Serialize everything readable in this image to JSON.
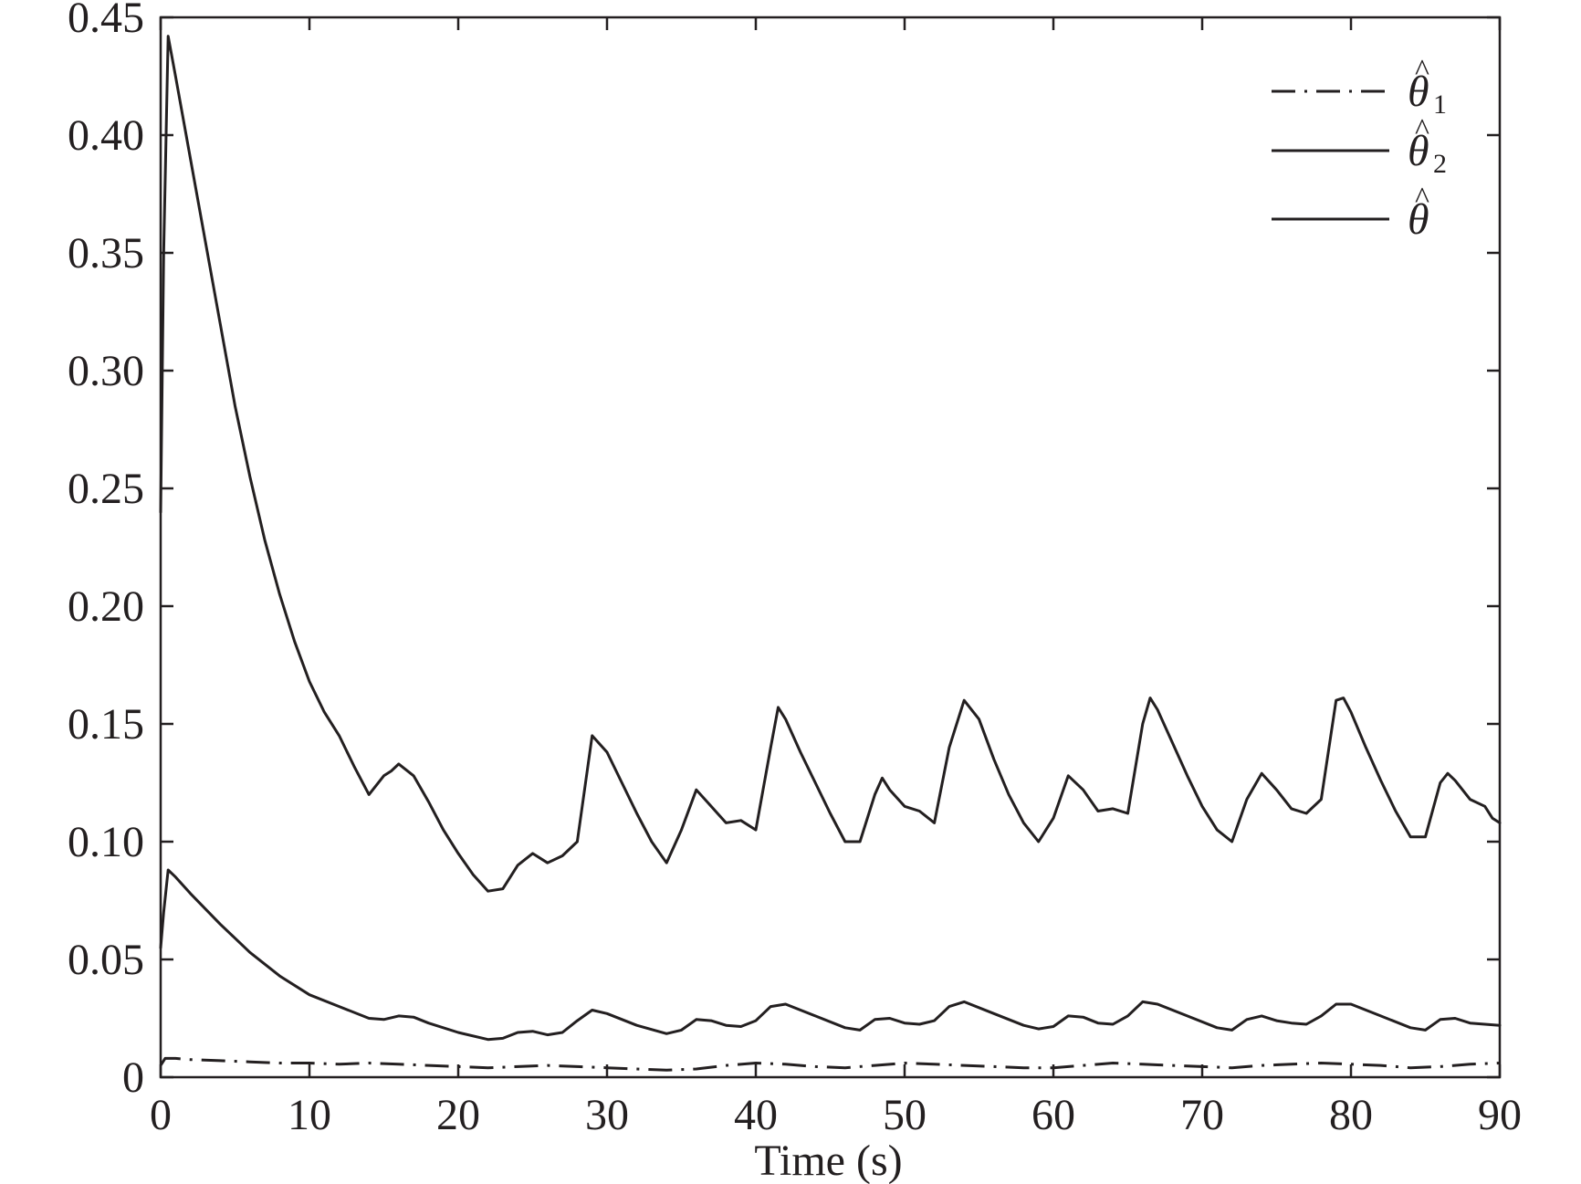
{
  "chart_data": {
    "type": "line",
    "title": "",
    "xlabel": "Time (s)",
    "ylabel": "",
    "xlim": [
      0,
      90
    ],
    "ylim": [
      0,
      0.45
    ],
    "grid": false,
    "legend_position": "top-right",
    "x_ticks": [
      0,
      10,
      20,
      30,
      40,
      50,
      60,
      70,
      80,
      90
    ],
    "x_tick_labels": [
      "0",
      "10",
      "20",
      "30",
      "40",
      "50",
      "60",
      "70",
      "80",
      "90"
    ],
    "y_ticks": [
      0,
      0.05,
      0.1,
      0.15,
      0.2,
      0.25,
      0.3,
      0.35,
      0.4,
      0.45
    ],
    "y_tick_labels": [
      "0",
      "0.05",
      "0.10",
      "0.15",
      "0.20",
      "0.25",
      "0.30",
      "0.35",
      "0.40",
      "0.45"
    ],
    "series": [
      {
        "name": "θ̂1",
        "legend_symbol": "θ",
        "legend_subscript": "1",
        "line_style": "dashdot",
        "color": "#231f20",
        "points": [
          [
            0,
            0.005
          ],
          [
            0.3,
            0.008
          ],
          [
            1,
            0.008
          ],
          [
            2,
            0.0075
          ],
          [
            4,
            0.007
          ],
          [
            6,
            0.0065
          ],
          [
            8,
            0.006
          ],
          [
            10,
            0.006
          ],
          [
            12,
            0.0055
          ],
          [
            14,
            0.006
          ],
          [
            16,
            0.0055
          ],
          [
            18,
            0.005
          ],
          [
            20,
            0.0045
          ],
          [
            22,
            0.004
          ],
          [
            24,
            0.0045
          ],
          [
            26,
            0.005
          ],
          [
            28,
            0.0045
          ],
          [
            30,
            0.004
          ],
          [
            32,
            0.0035
          ],
          [
            34,
            0.003
          ],
          [
            36,
            0.0035
          ],
          [
            38,
            0.005
          ],
          [
            40,
            0.006
          ],
          [
            42,
            0.0055
          ],
          [
            44,
            0.0045
          ],
          [
            46,
            0.004
          ],
          [
            48,
            0.005
          ],
          [
            50,
            0.006
          ],
          [
            52,
            0.0055
          ],
          [
            54,
            0.005
          ],
          [
            56,
            0.0045
          ],
          [
            58,
            0.004
          ],
          [
            60,
            0.004
          ],
          [
            62,
            0.005
          ],
          [
            64,
            0.006
          ],
          [
            66,
            0.0055
          ],
          [
            68,
            0.005
          ],
          [
            70,
            0.0045
          ],
          [
            72,
            0.004
          ],
          [
            74,
            0.005
          ],
          [
            76,
            0.0055
          ],
          [
            78,
            0.006
          ],
          [
            80,
            0.0055
          ],
          [
            82,
            0.005
          ],
          [
            84,
            0.004
          ],
          [
            86,
            0.0045
          ],
          [
            88,
            0.0055
          ],
          [
            90,
            0.006
          ]
        ]
      },
      {
        "name": "θ̂2",
        "legend_symbol": "θ",
        "legend_subscript": "2",
        "line_style": "solid",
        "color": "#231f20",
        "points": [
          [
            0,
            0.055
          ],
          [
            0.2,
            0.07
          ],
          [
            0.5,
            0.088
          ],
          [
            1,
            0.085
          ],
          [
            2,
            0.078
          ],
          [
            4,
            0.065
          ],
          [
            6,
            0.053
          ],
          [
            8,
            0.043
          ],
          [
            10,
            0.035
          ],
          [
            12,
            0.03
          ],
          [
            14,
            0.025
          ],
          [
            15,
            0.0245
          ],
          [
            16,
            0.026
          ],
          [
            17,
            0.0255
          ],
          [
            18,
            0.023
          ],
          [
            20,
            0.019
          ],
          [
            22,
            0.016
          ],
          [
            23,
            0.0165
          ],
          [
            24,
            0.019
          ],
          [
            25,
            0.0195
          ],
          [
            26,
            0.018
          ],
          [
            27,
            0.019
          ],
          [
            28,
            0.024
          ],
          [
            29,
            0.0285
          ],
          [
            30,
            0.027
          ],
          [
            32,
            0.022
          ],
          [
            34,
            0.0185
          ],
          [
            35,
            0.02
          ],
          [
            36,
            0.0245
          ],
          [
            37,
            0.024
          ],
          [
            38,
            0.022
          ],
          [
            39,
            0.0215
          ],
          [
            40,
            0.024
          ],
          [
            41,
            0.03
          ],
          [
            42,
            0.031
          ],
          [
            44,
            0.026
          ],
          [
            46,
            0.021
          ],
          [
            47,
            0.02
          ],
          [
            48,
            0.0245
          ],
          [
            49,
            0.025
          ],
          [
            50,
            0.023
          ],
          [
            51,
            0.0225
          ],
          [
            52,
            0.024
          ],
          [
            53,
            0.03
          ],
          [
            54,
            0.032
          ],
          [
            56,
            0.027
          ],
          [
            58,
            0.022
          ],
          [
            59,
            0.0205
          ],
          [
            60,
            0.0215
          ],
          [
            61,
            0.026
          ],
          [
            62,
            0.0255
          ],
          [
            63,
            0.023
          ],
          [
            64,
            0.0225
          ],
          [
            65,
            0.026
          ],
          [
            66,
            0.032
          ],
          [
            67,
            0.031
          ],
          [
            69,
            0.026
          ],
          [
            71,
            0.021
          ],
          [
            72,
            0.02
          ],
          [
            73,
            0.0245
          ],
          [
            74,
            0.026
          ],
          [
            75,
            0.024
          ],
          [
            76,
            0.023
          ],
          [
            77,
            0.0225
          ],
          [
            78,
            0.026
          ],
          [
            79,
            0.031
          ],
          [
            80,
            0.031
          ],
          [
            82,
            0.026
          ],
          [
            84,
            0.021
          ],
          [
            85,
            0.02
          ],
          [
            86,
            0.0245
          ],
          [
            87,
            0.025
          ],
          [
            88,
            0.023
          ],
          [
            89,
            0.0225
          ],
          [
            90,
            0.022
          ]
        ]
      },
      {
        "name": "θ̂",
        "legend_symbol": "θ",
        "legend_subscript": "",
        "line_style": "solid",
        "color": "#231f20",
        "points": [
          [
            0,
            0.24
          ],
          [
            0.2,
            0.35
          ],
          [
            0.5,
            0.442
          ],
          [
            1,
            0.425
          ],
          [
            2,
            0.39
          ],
          [
            3,
            0.355
          ],
          [
            4,
            0.32
          ],
          [
            5,
            0.285
          ],
          [
            6,
            0.255
          ],
          [
            7,
            0.228
          ],
          [
            8,
            0.205
          ],
          [
            9,
            0.185
          ],
          [
            10,
            0.168
          ],
          [
            11,
            0.155
          ],
          [
            12,
            0.145
          ],
          [
            13,
            0.132
          ],
          [
            14,
            0.12
          ],
          [
            15,
            0.128
          ],
          [
            15.5,
            0.13
          ],
          [
            16,
            0.133
          ],
          [
            17,
            0.128
          ],
          [
            18,
            0.117
          ],
          [
            19,
            0.105
          ],
          [
            20,
            0.095
          ],
          [
            21,
            0.086
          ],
          [
            22,
            0.079
          ],
          [
            23,
            0.08
          ],
          [
            24,
            0.09
          ],
          [
            25,
            0.095
          ],
          [
            26,
            0.091
          ],
          [
            27,
            0.094
          ],
          [
            28,
            0.1
          ],
          [
            29,
            0.145
          ],
          [
            30,
            0.138
          ],
          [
            31,
            0.125
          ],
          [
            32,
            0.112
          ],
          [
            33,
            0.1
          ],
          [
            34,
            0.091
          ],
          [
            35,
            0.105
          ],
          [
            36,
            0.122
          ],
          [
            37,
            0.115
          ],
          [
            38,
            0.108
          ],
          [
            39,
            0.109
          ],
          [
            40,
            0.105
          ],
          [
            41,
            0.14
          ],
          [
            41.5,
            0.157
          ],
          [
            42,
            0.152
          ],
          [
            43,
            0.138
          ],
          [
            44,
            0.125
          ],
          [
            45,
            0.112
          ],
          [
            46,
            0.1
          ],
          [
            47,
            0.1
          ],
          [
            48,
            0.12
          ],
          [
            48.5,
            0.127
          ],
          [
            49,
            0.122
          ],
          [
            50,
            0.115
          ],
          [
            51,
            0.113
          ],
          [
            52,
            0.108
          ],
          [
            53,
            0.14
          ],
          [
            54,
            0.16
          ],
          [
            55,
            0.152
          ],
          [
            56,
            0.135
          ],
          [
            57,
            0.12
          ],
          [
            58,
            0.108
          ],
          [
            59,
            0.1
          ],
          [
            60,
            0.11
          ],
          [
            61,
            0.128
          ],
          [
            62,
            0.122
          ],
          [
            63,
            0.113
          ],
          [
            64,
            0.114
          ],
          [
            65,
            0.112
          ],
          [
            66,
            0.15
          ],
          [
            66.5,
            0.161
          ],
          [
            67,
            0.156
          ],
          [
            68,
            0.142
          ],
          [
            69,
            0.128
          ],
          [
            70,
            0.115
          ],
          [
            71,
            0.105
          ],
          [
            72,
            0.1
          ],
          [
            73,
            0.118
          ],
          [
            74,
            0.129
          ],
          [
            75,
            0.122
          ],
          [
            76,
            0.114
          ],
          [
            77,
            0.112
          ],
          [
            78,
            0.118
          ],
          [
            79,
            0.16
          ],
          [
            79.5,
            0.161
          ],
          [
            80,
            0.155
          ],
          [
            81,
            0.14
          ],
          [
            82,
            0.126
          ],
          [
            83,
            0.113
          ],
          [
            84,
            0.102
          ],
          [
            85,
            0.102
          ],
          [
            86,
            0.125
          ],
          [
            86.5,
            0.129
          ],
          [
            87,
            0.126
          ],
          [
            88,
            0.118
          ],
          [
            89,
            0.115
          ],
          [
            89.5,
            0.11
          ],
          [
            90,
            0.108
          ]
        ]
      }
    ]
  }
}
